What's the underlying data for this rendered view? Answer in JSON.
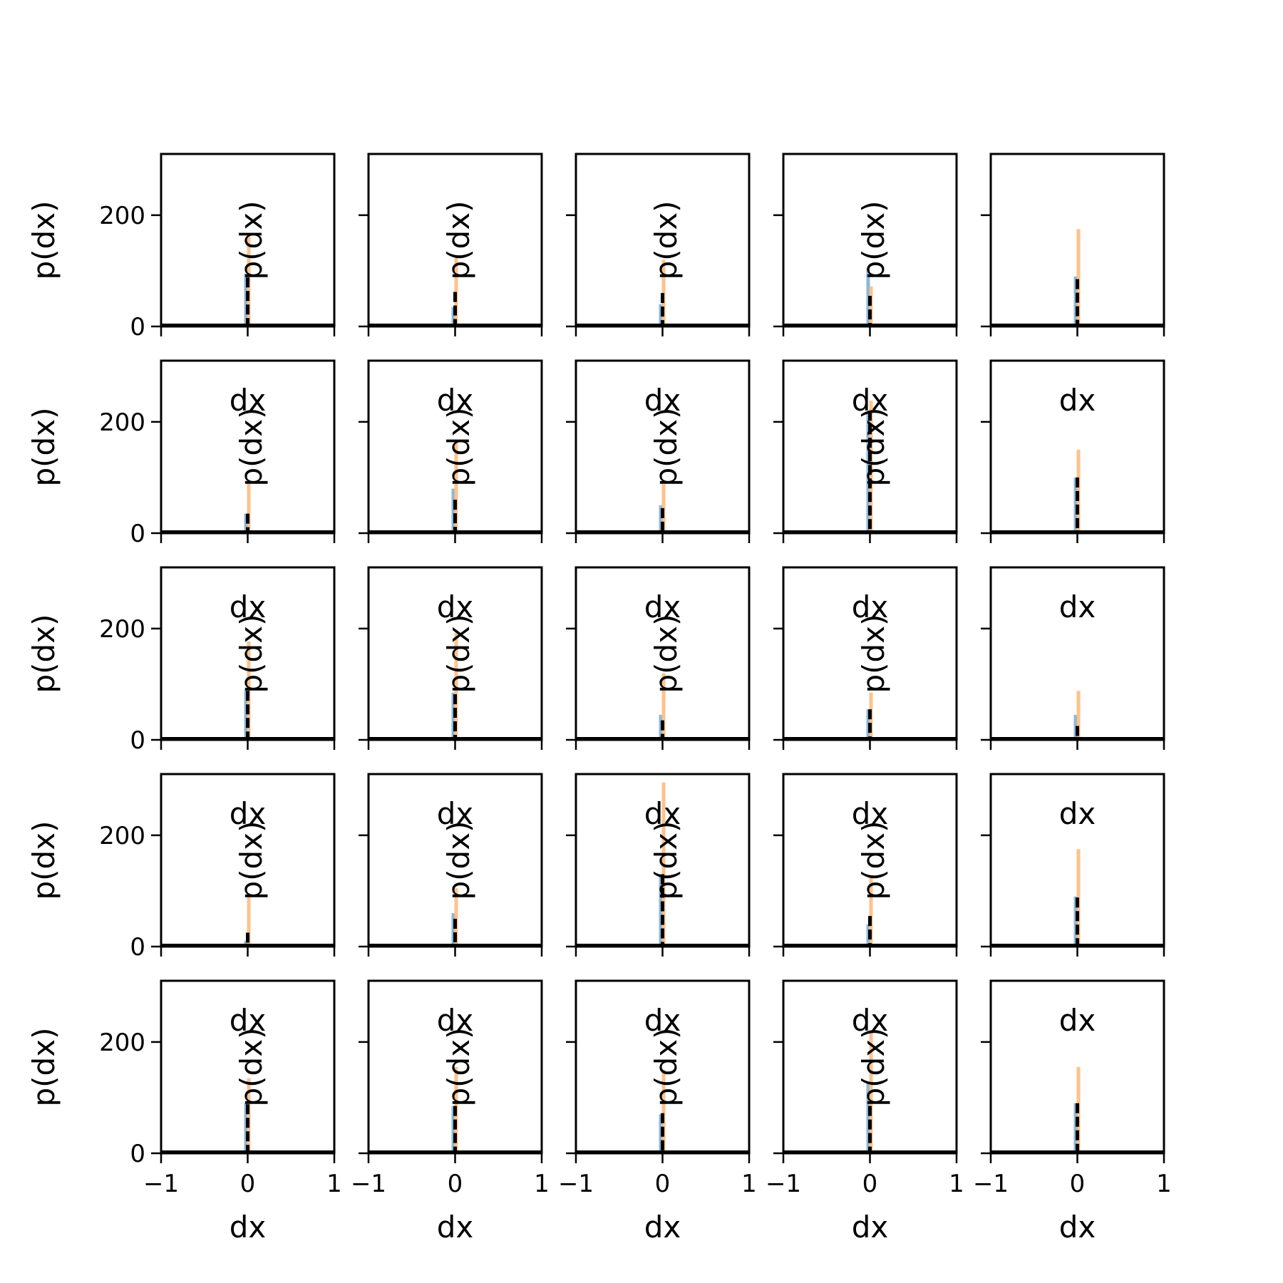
{
  "chart_data": {
    "type": "histogram-grid",
    "rows": 5,
    "cols": 5,
    "xlabel": "dx",
    "ylabel": "p(dx)",
    "xlim": [
      -1,
      1
    ],
    "ylim": [
      0,
      310
    ],
    "xticks": [
      -1,
      0,
      1
    ],
    "xtick_labels": [
      "−1",
      "0",
      "1"
    ],
    "yticks": [
      0,
      200
    ],
    "ytick_labels": [
      "0",
      "200"
    ],
    "colors": {
      "blue": "#7fb0d5",
      "orange": "#ffbb80",
      "black": "#000000"
    },
    "panels": [
      {
        "orange": 162,
        "blue": 95,
        "black": 88
      },
      {
        "orange": 127,
        "blue": 35,
        "black": 62
      },
      {
        "orange": 120,
        "blue": 40,
        "black": 60
      },
      {
        "orange": 72,
        "blue": 105,
        "black": 55
      },
      {
        "orange": 175,
        "blue": 90,
        "black": 85
      },
      {
        "orange": 90,
        "blue": 35,
        "black": 35
      },
      {
        "orange": 165,
        "blue": 80,
        "black": 60
      },
      {
        "orange": 88,
        "blue": 50,
        "black": 45
      },
      {
        "orange": 238,
        "blue": 215,
        "black": 220
      },
      {
        "orange": 150,
        "blue": 100,
        "black": 100
      },
      {
        "orange": 177,
        "blue": 90,
        "black": 88
      },
      {
        "orange": 192,
        "blue": 85,
        "black": 82
      },
      {
        "orange": 120,
        "blue": 45,
        "black": 35
      },
      {
        "orange": 85,
        "blue": 55,
        "black": 55
      },
      {
        "orange": 88,
        "blue": 45,
        "black": 25
      },
      {
        "orange": 95,
        "blue": 10,
        "black": 25
      },
      {
        "orange": 105,
        "blue": 60,
        "black": 50
      },
      {
        "orange": 295,
        "blue": 130,
        "black": 130
      },
      {
        "orange": 128,
        "blue": 40,
        "black": 55
      },
      {
        "orange": 175,
        "blue": 90,
        "black": 88
      },
      {
        "orange": 135,
        "blue": 90,
        "black": 88
      },
      {
        "orange": 155,
        "blue": 85,
        "black": 85
      },
      {
        "orange": 150,
        "blue": 70,
        "black": 72
      },
      {
        "orange": 218,
        "blue": 125,
        "black": 85
      },
      {
        "orange": 155,
        "blue": 90,
        "black": 90
      }
    ]
  }
}
